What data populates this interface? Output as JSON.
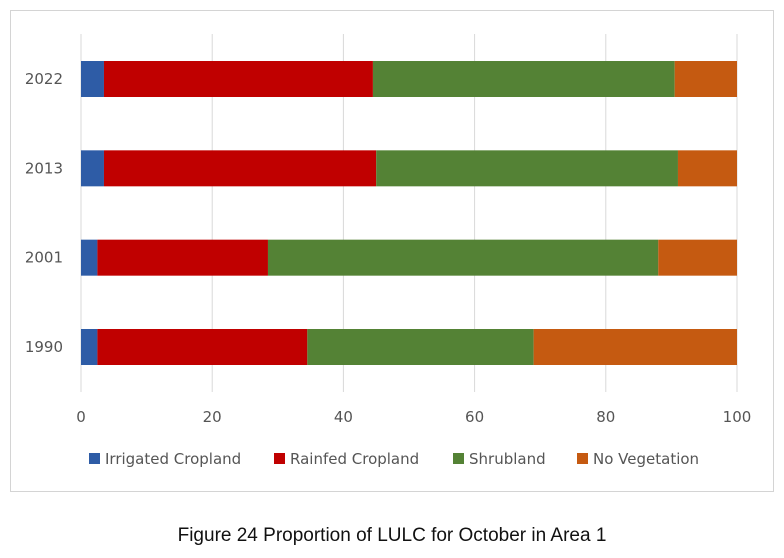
{
  "caption": "Figure 24 Proportion of LULC for October in Area 1",
  "chart_data": {
    "type": "bar",
    "orientation": "horizontal",
    "stacked": true,
    "categories": [
      "1990",
      "2001",
      "2013",
      "2022"
    ],
    "series": [
      {
        "name": "Irrigated Cropland",
        "color": "#2e5ca6",
        "values": [
          2.5,
          2.5,
          3.5,
          3.5
        ]
      },
      {
        "name": "Rainfed Cropland",
        "color": "#c00000",
        "values": [
          32,
          26,
          41.5,
          41
        ]
      },
      {
        "name": "Shrubland",
        "color": "#548235",
        "values": [
          34.5,
          59.5,
          46,
          46
        ]
      },
      {
        "name": "No Vegetation",
        "color": "#c55a11",
        "values": [
          31,
          12,
          9,
          9.5
        ]
      }
    ],
    "xlim": [
      0,
      100
    ],
    "xticks": [
      "0",
      "20",
      "40",
      "60",
      "80",
      "100"
    ],
    "grid": true,
    "legend": "bottom"
  }
}
